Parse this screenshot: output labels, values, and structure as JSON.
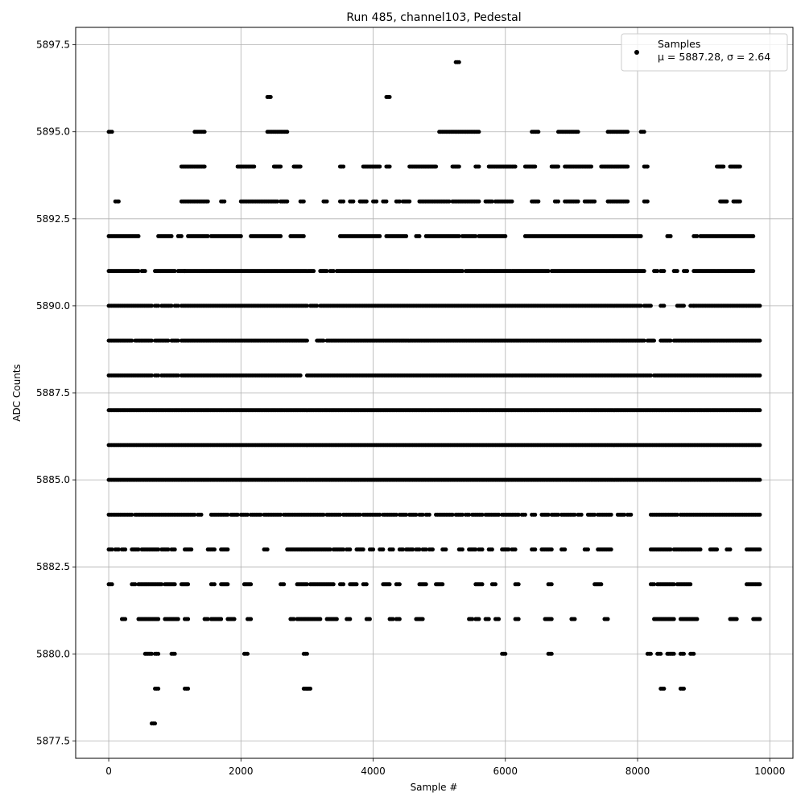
{
  "chart_data": {
    "type": "scatter",
    "title": "Run 485, channel103, Pedestal",
    "xlabel": "Sample #",
    "ylabel": "ADC Counts",
    "xlim": [
      -500,
      10350
    ],
    "ylim": [
      5877.0,
      5898.0
    ],
    "xticks": [
      0,
      2000,
      4000,
      6000,
      8000,
      10000
    ],
    "yticks": [
      5877.5,
      5880.0,
      5882.5,
      5885.0,
      5887.5,
      5890.0,
      5892.5,
      5895.0,
      5897.5
    ],
    "xtick_labels": [
      "0",
      "2000",
      "4000",
      "6000",
      "8000",
      "10000"
    ],
    "ytick_labels": [
      "5877.5",
      "5880.0",
      "5882.5",
      "5885.0",
      "5887.5",
      "5890.0",
      "5892.5",
      "5895.0",
      "5897.5"
    ],
    "grid": true,
    "legend": {
      "location": "upper right",
      "entry": "Samples",
      "stats": "μ = 5887.28, σ = 2.64"
    },
    "series": [
      {
        "name": "Samples",
        "color": "#000000",
        "marker": "circle",
        "x_range": [
          0,
          9850
        ],
        "mean": 5887.28,
        "std": 2.64,
        "level_ranges": {
          "5895": [
            [
              0,
              50
            ],
            [
              1300,
              1450
            ],
            [
              2400,
              2700
            ],
            [
              5000,
              5600
            ],
            [
              6400,
              6500
            ],
            [
              6800,
              7100
            ],
            [
              7550,
              7850
            ],
            [
              8050,
              8100
            ]
          ],
          "5894": [
            [
              1100,
              1450
            ],
            [
              1950,
              2200
            ],
            [
              2500,
              2600
            ],
            [
              2800,
              2900
            ],
            [
              3500,
              3550
            ],
            [
              3850,
              4100
            ],
            [
              4200,
              4250
            ],
            [
              4550,
              4950
            ],
            [
              5200,
              5300
            ],
            [
              5550,
              5600
            ],
            [
              5750,
              6150
            ],
            [
              6300,
              6450
            ],
            [
              6700,
              6800
            ],
            [
              6900,
              7300
            ],
            [
              7450,
              7850
            ],
            [
              8100,
              8150
            ],
            [
              9200,
              9300
            ],
            [
              9400,
              9550
            ]
          ],
          "5893": [
            [
              100,
              150
            ],
            [
              1100,
              1500
            ],
            [
              1700,
              1750
            ],
            [
              2000,
              2550
            ],
            [
              2600,
              2700
            ],
            [
              2900,
              2950
            ],
            [
              3250,
              3300
            ],
            [
              3500,
              3550
            ],
            [
              3650,
              3700
            ],
            [
              3800,
              3900
            ],
            [
              4000,
              4050
            ],
            [
              4150,
              4200
            ],
            [
              4350,
              4400
            ],
            [
              4450,
              4550
            ],
            [
              4700,
              5150
            ],
            [
              5200,
              5600
            ],
            [
              5700,
              5800
            ],
            [
              5850,
              6100
            ],
            [
              6400,
              6500
            ],
            [
              6750,
              6800
            ],
            [
              6900,
              7100
            ],
            [
              7200,
              7350
            ],
            [
              7550,
              7850
            ],
            [
              8100,
              8150
            ],
            [
              9250,
              9350
            ],
            [
              9450,
              9550
            ]
          ],
          "5892": [
            [
              0,
              450
            ],
            [
              750,
              950
            ],
            [
              1050,
              1100
            ],
            [
              1200,
              1500
            ],
            [
              1550,
              2000
            ],
            [
              2150,
              2600
            ],
            [
              2750,
              2950
            ],
            [
              3500,
              4100
            ],
            [
              4200,
              4500
            ],
            [
              4650,
              4700
            ],
            [
              4800,
              5300
            ],
            [
              5350,
              5550
            ],
            [
              5600,
              6000
            ],
            [
              6300,
              8050
            ],
            [
              8450,
              8500
            ],
            [
              8850,
              8900
            ],
            [
              8950,
              9750
            ]
          ],
          "5891": [
            [
              0,
              450
            ],
            [
              500,
              550
            ],
            [
              700,
              1000
            ],
            [
              1050,
              1150
            ],
            [
              1150,
              3100
            ],
            [
              3200,
              3300
            ],
            [
              3350,
              3400
            ],
            [
              3450,
              5350
            ],
            [
              5400,
              6650
            ],
            [
              6700,
              8100
            ],
            [
              8250,
              8300
            ],
            [
              8350,
              8400
            ],
            [
              8550,
              8600
            ],
            [
              8700,
              8750
            ],
            [
              8850,
              9750
            ]
          ],
          "5890": [
            [
              0,
              650
            ],
            [
              700,
              750
            ],
            [
              800,
              950
            ],
            [
              1000,
              1050
            ],
            [
              1100,
              3000
            ],
            [
              3050,
              3150
            ],
            [
              3200,
              8050
            ],
            [
              8100,
              8200
            ],
            [
              8350,
              8400
            ],
            [
              8600,
              8700
            ],
            [
              8800,
              8850
            ],
            [
              8850,
              9850
            ]
          ],
          "5889": [
            [
              0,
              350
            ],
            [
              400,
              650
            ],
            [
              700,
              900
            ],
            [
              950,
              1050
            ],
            [
              1100,
              3000
            ],
            [
              3150,
              3250
            ],
            [
              3300,
              8100
            ],
            [
              8150,
              8250
            ],
            [
              8350,
              8500
            ],
            [
              8550,
              9850
            ]
          ],
          "5888": [
            [
              0,
              650
            ],
            [
              700,
              750
            ],
            [
              800,
              1050
            ],
            [
              1100,
              2900
            ],
            [
              3000,
              8200
            ],
            [
              8250,
              9850
            ]
          ],
          "5887": [
            [
              0,
              9850
            ]
          ],
          "5886": [
            [
              0,
              9850
            ]
          ],
          "5885": [
            [
              0,
              9850
            ]
          ],
          "5884": [
            [
              0,
              350
            ],
            [
              400,
              1300
            ],
            [
              1350,
              1400
            ],
            [
              1550,
              1800
            ],
            [
              1850,
              1950
            ],
            [
              2000,
              2100
            ],
            [
              2150,
              2300
            ],
            [
              2350,
              2600
            ],
            [
              2650,
              3250
            ],
            [
              3300,
              3500
            ],
            [
              3550,
              3800
            ],
            [
              3850,
              4100
            ],
            [
              4150,
              4350
            ],
            [
              4400,
              4500
            ],
            [
              4550,
              4650
            ],
            [
              4700,
              4750
            ],
            [
              4800,
              4850
            ],
            [
              4950,
              5200
            ],
            [
              5250,
              5350
            ],
            [
              5400,
              5450
            ],
            [
              5500,
              5650
            ],
            [
              5700,
              5900
            ],
            [
              5950,
              6200
            ],
            [
              6250,
              6300
            ],
            [
              6400,
              6450
            ],
            [
              6550,
              6650
            ],
            [
              6700,
              6800
            ],
            [
              6850,
              7050
            ],
            [
              7100,
              7150
            ],
            [
              7250,
              7350
            ],
            [
              7400,
              7600
            ],
            [
              7700,
              7800
            ],
            [
              7850,
              7900
            ],
            [
              8200,
              8600
            ],
            [
              8650,
              9850
            ]
          ],
          "5883": [
            [
              0,
              50
            ],
            [
              100,
              150
            ],
            [
              200,
              250
            ],
            [
              350,
              450
            ],
            [
              500,
              750
            ],
            [
              800,
              900
            ],
            [
              950,
              1000
            ],
            [
              1150,
              1250
            ],
            [
              1500,
              1600
            ],
            [
              1700,
              1800
            ],
            [
              2350,
              2400
            ],
            [
              2700,
              3350
            ],
            [
              3400,
              3550
            ],
            [
              3600,
              3650
            ],
            [
              3750,
              3850
            ],
            [
              3950,
              4000
            ],
            [
              4100,
              4150
            ],
            [
              4250,
              4300
            ],
            [
              4400,
              4450
            ],
            [
              4500,
              4600
            ],
            [
              4650,
              4700
            ],
            [
              4750,
              4800
            ],
            [
              4850,
              4900
            ],
            [
              5050,
              5100
            ],
            [
              5300,
              5350
            ],
            [
              5450,
              5550
            ],
            [
              5600,
              5650
            ],
            [
              5750,
              5800
            ],
            [
              5950,
              6050
            ],
            [
              6100,
              6150
            ],
            [
              6400,
              6450
            ],
            [
              6550,
              6700
            ],
            [
              6850,
              6900
            ],
            [
              7200,
              7250
            ],
            [
              7400,
              7600
            ],
            [
              8200,
              8500
            ],
            [
              8550,
              8950
            ],
            [
              9100,
              9200
            ],
            [
              9350,
              9400
            ],
            [
              9650,
              9850
            ]
          ],
          "5882": [
            [
              0,
              50
            ],
            [
              350,
              400
            ],
            [
              450,
              800
            ],
            [
              850,
              1000
            ],
            [
              1100,
              1200
            ],
            [
              1550,
              1600
            ],
            [
              1700,
              1800
            ],
            [
              2050,
              2150
            ],
            [
              2600,
              2650
            ],
            [
              2850,
              3000
            ],
            [
              3050,
              3400
            ],
            [
              3500,
              3550
            ],
            [
              3650,
              3750
            ],
            [
              3850,
              3900
            ],
            [
              4150,
              4250
            ],
            [
              4350,
              4400
            ],
            [
              4700,
              4800
            ],
            [
              4950,
              5050
            ],
            [
              5550,
              5650
            ],
            [
              5800,
              5850
            ],
            [
              6150,
              6200
            ],
            [
              6650,
              6700
            ],
            [
              7350,
              7450
            ],
            [
              8200,
              8250
            ],
            [
              8300,
              8550
            ],
            [
              8600,
              8800
            ],
            [
              9650,
              9850
            ]
          ],
          "5881": [
            [
              200,
              250
            ],
            [
              450,
              750
            ],
            [
              850,
              1050
            ],
            [
              1150,
              1200
            ],
            [
              1450,
              1500
            ],
            [
              1550,
              1700
            ],
            [
              1800,
              1900
            ],
            [
              2100,
              2150
            ],
            [
              2750,
              2800
            ],
            [
              2850,
              3200
            ],
            [
              3300,
              3450
            ],
            [
              3600,
              3650
            ],
            [
              3900,
              3950
            ],
            [
              4250,
              4300
            ],
            [
              4350,
              4400
            ],
            [
              4650,
              4750
            ],
            [
              5450,
              5500
            ],
            [
              5550,
              5600
            ],
            [
              5700,
              5750
            ],
            [
              5850,
              5900
            ],
            [
              6150,
              6200
            ],
            [
              6600,
              6700
            ],
            [
              7000,
              7050
            ],
            [
              7500,
              7550
            ],
            [
              8250,
              8550
            ],
            [
              8650,
              8900
            ],
            [
              9400,
              9500
            ],
            [
              9750,
              9850
            ]
          ],
          "5880": [
            [
              550,
              650
            ],
            [
              700,
              750
            ],
            [
              950,
              1000
            ],
            [
              2050,
              2100
            ],
            [
              2950,
              3000
            ],
            [
              5950,
              6000
            ],
            [
              6650,
              6700
            ],
            [
              8150,
              8200
            ],
            [
              8300,
              8350
            ],
            [
              8450,
              8550
            ],
            [
              8650,
              8700
            ],
            [
              8800,
              8850
            ]
          ],
          "5879": [
            [
              700,
              750
            ],
            [
              1150,
              1200
            ],
            [
              2950,
              3050
            ],
            [
              8350,
              8400
            ],
            [
              8650,
              8700
            ]
          ],
          "5878": [
            [
              650,
              700
            ]
          ],
          "5896": [
            [
              2400,
              2450
            ],
            [
              4200,
              4250
            ]
          ],
          "5897": [
            [
              5250,
              5300
            ]
          ]
        }
      }
    ]
  }
}
